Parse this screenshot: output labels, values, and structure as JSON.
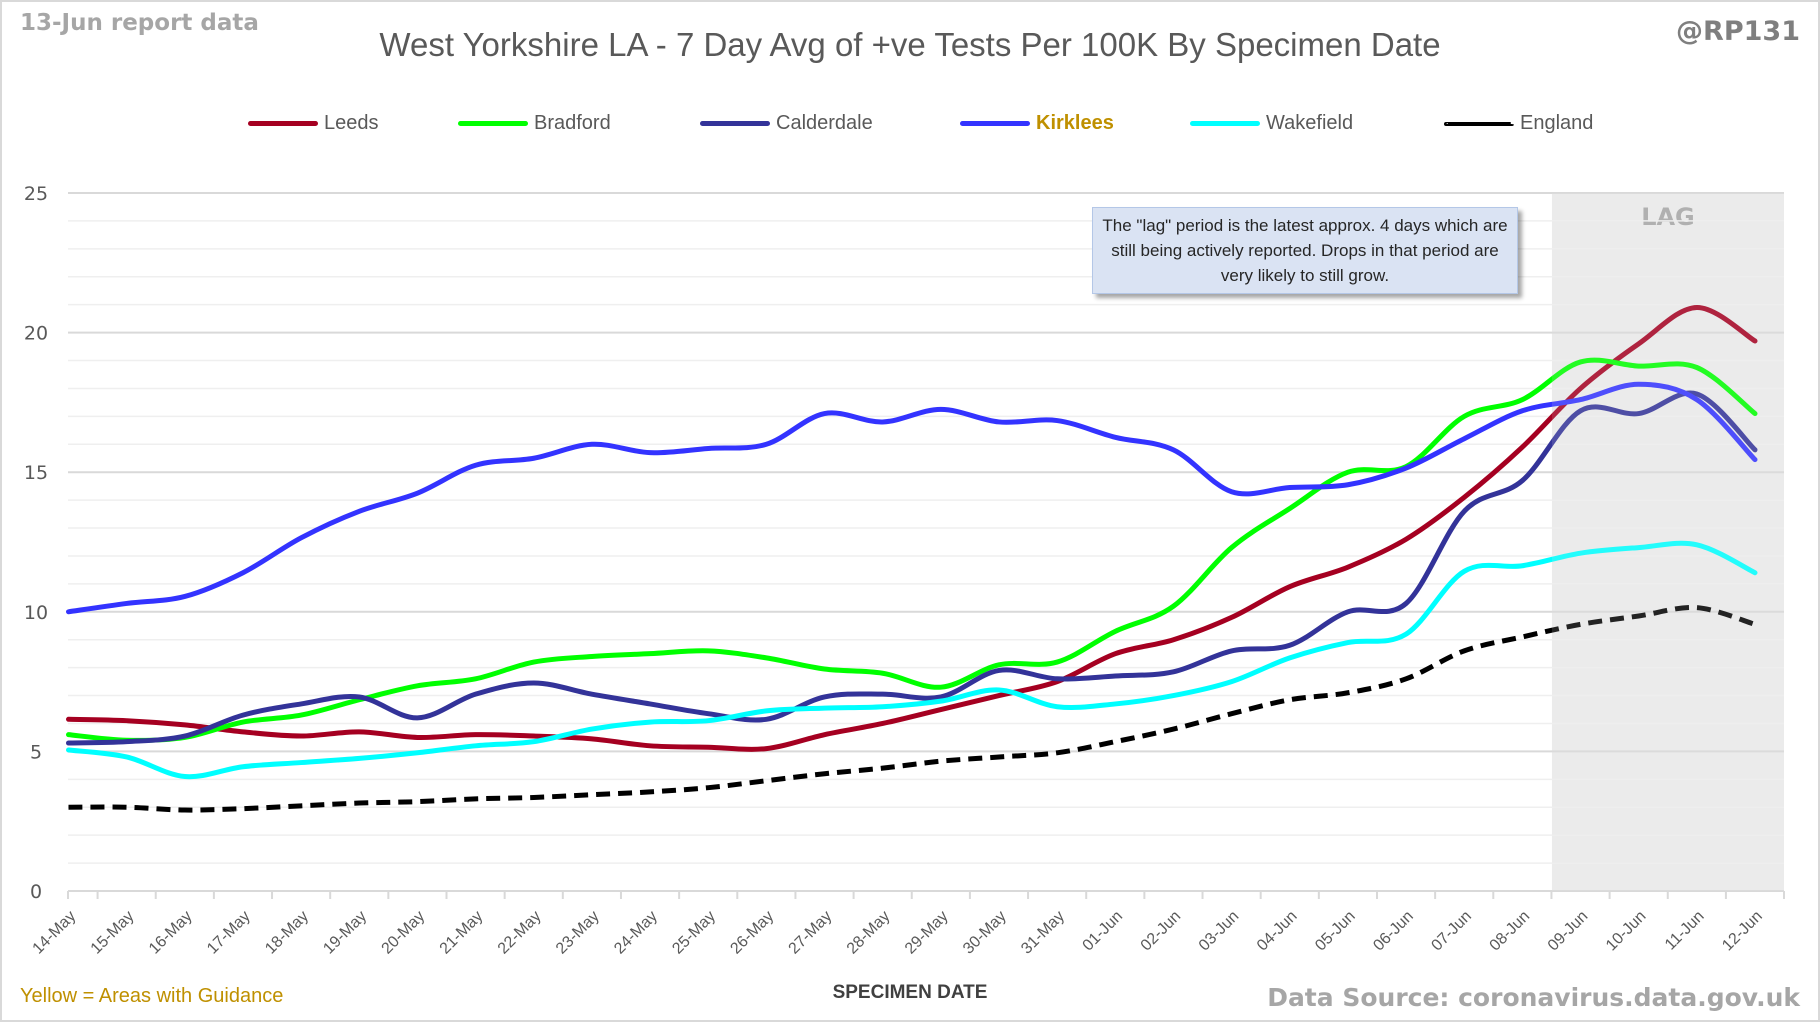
{
  "header": {
    "report_date": "13-Jun report data",
    "handle": "@RP131"
  },
  "annotation": {
    "text": "The \"lag\" period is the latest approx. 4 days which are still being actively reported.  Drops in that period are very likely to still grow."
  },
  "footer": {
    "guidance_note": "Yellow = Areas with Guidance",
    "source": "Data Source: coronavirus.data.gov.uk"
  },
  "chart_data": {
    "type": "line",
    "title": "West Yorkshire LA - 7 Day Avg of +ve Tests Per 100K By Specimen Date",
    "xlabel": "SPECIMEN DATE",
    "ylabel": "",
    "ylim": [
      0,
      25
    ],
    "yticks": [
      0,
      5,
      10,
      15,
      20,
      25
    ],
    "grid": true,
    "minor_grid_step": 1,
    "legend_position": "top",
    "lag_region": {
      "label": "LAG",
      "from": "09-Jun",
      "to": "12-Jun",
      "color": "#ebebeb"
    },
    "categories": [
      "14-May",
      "15-May",
      "16-May",
      "17-May",
      "18-May",
      "19-May",
      "20-May",
      "21-May",
      "22-May",
      "23-May",
      "24-May",
      "25-May",
      "26-May",
      "27-May",
      "28-May",
      "29-May",
      "30-May",
      "31-May",
      "01-Jun",
      "02-Jun",
      "03-Jun",
      "04-Jun",
      "05-Jun",
      "06-Jun",
      "07-Jun",
      "08-Jun",
      "09-Jun",
      "10-Jun",
      "11-Jun",
      "12-Jun"
    ],
    "series": [
      {
        "name": "Leeds",
        "color": "#a50021",
        "dashed": false,
        "highlight": false,
        "values": [
          6.15,
          6.1,
          5.95,
          5.7,
          5.55,
          5.7,
          5.5,
          5.6,
          5.55,
          5.45,
          5.2,
          5.15,
          5.1,
          5.6,
          6.0,
          6.5,
          7.0,
          7.5,
          8.5,
          9.0,
          9.8,
          10.9,
          11.6,
          12.6,
          14.1,
          15.9,
          18.0,
          19.6,
          20.9,
          19.7
        ]
      },
      {
        "name": "Bradford",
        "color": "#00ff00",
        "dashed": false,
        "highlight": false,
        "values": [
          5.6,
          5.4,
          5.5,
          6.05,
          6.3,
          6.85,
          7.35,
          7.6,
          8.2,
          8.4,
          8.5,
          8.6,
          8.35,
          7.95,
          7.8,
          7.3,
          8.1,
          8.2,
          9.3,
          10.2,
          12.3,
          13.7,
          15.0,
          15.2,
          17.0,
          17.6,
          18.95,
          18.8,
          18.75,
          17.1
        ]
      },
      {
        "name": "Calderdale",
        "color": "#333399",
        "dashed": false,
        "highlight": false,
        "values": [
          5.3,
          5.35,
          5.55,
          6.3,
          6.7,
          6.95,
          6.2,
          7.05,
          7.45,
          7.05,
          6.7,
          6.35,
          6.15,
          6.95,
          7.05,
          6.95,
          7.9,
          7.6,
          7.7,
          7.85,
          8.6,
          8.8,
          10.0,
          10.3,
          13.6,
          14.7,
          17.2,
          17.1,
          17.8,
          15.8
        ]
      },
      {
        "name": "Kirklees",
        "color": "#3333ff",
        "dashed": false,
        "highlight": true,
        "values": [
          10.0,
          10.3,
          10.55,
          11.4,
          12.65,
          13.6,
          14.25,
          15.25,
          15.5,
          16.0,
          15.7,
          15.85,
          16.0,
          17.1,
          16.8,
          17.25,
          16.8,
          16.85,
          16.25,
          15.8,
          14.3,
          14.45,
          14.55,
          15.15,
          16.2,
          17.2,
          17.6,
          18.15,
          17.6,
          15.45
        ]
      },
      {
        "name": "Wakefield",
        "color": "#00ffff",
        "dashed": false,
        "highlight": false,
        "values": [
          5.05,
          4.8,
          4.1,
          4.45,
          4.6,
          4.75,
          4.95,
          5.2,
          5.35,
          5.8,
          6.05,
          6.1,
          6.45,
          6.55,
          6.6,
          6.8,
          7.2,
          6.6,
          6.7,
          7.0,
          7.5,
          8.35,
          8.9,
          9.2,
          11.45,
          11.65,
          12.1,
          12.3,
          12.4,
          11.4
        ]
      },
      {
        "name": "England",
        "color": "#000000",
        "dashed": true,
        "highlight": false,
        "values": [
          3.0,
          3.0,
          2.9,
          2.95,
          3.05,
          3.15,
          3.2,
          3.3,
          3.35,
          3.45,
          3.55,
          3.7,
          3.95,
          4.2,
          4.4,
          4.65,
          4.8,
          4.95,
          5.35,
          5.8,
          6.35,
          6.85,
          7.1,
          7.6,
          8.6,
          9.1,
          9.55,
          9.85,
          10.15,
          9.55
        ]
      }
    ]
  }
}
